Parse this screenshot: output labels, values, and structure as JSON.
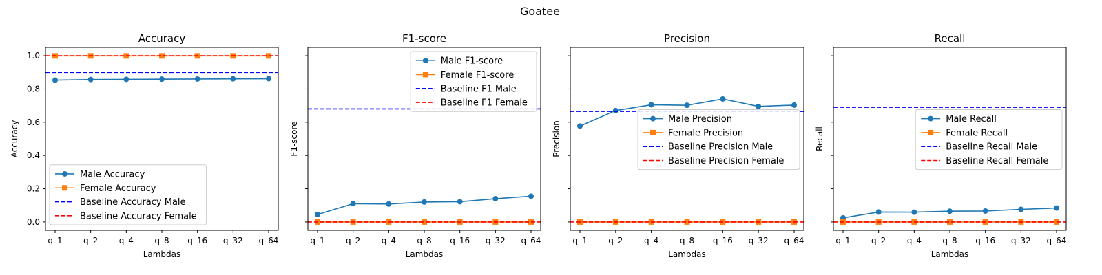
{
  "figure": {
    "title": "Goatee"
  },
  "chart_data": [
    {
      "type": "line",
      "title": "Accuracy",
      "xlabel": "Lambdas",
      "ylabel": "Accuracy",
      "categories": [
        "q_1",
        "q_2",
        "q_4",
        "q_8",
        "q_16",
        "q_32",
        "q_64"
      ],
      "ylim": [
        -0.05,
        1.05
      ],
      "yticks": [
        "0.0",
        "0.2",
        "0.4",
        "0.6",
        "0.8",
        "1.0"
      ],
      "show_ytick_labels": true,
      "series": [
        {
          "name": "Male Accuracy",
          "values": [
            0.853,
            0.857,
            0.858,
            0.859,
            0.86,
            0.861,
            0.862
          ],
          "color": "#1f77b4",
          "marker": "circle"
        },
        {
          "name": "Female Accuracy",
          "values": [
            0.999,
            0.999,
            0.999,
            0.999,
            0.999,
            0.999,
            0.999
          ],
          "color": "#ff7f0e",
          "marker": "square"
        }
      ],
      "baselines": [
        {
          "name": "Baseline Accuracy Male",
          "value": 0.9,
          "color": "#0000ff"
        },
        {
          "name": "Baseline Accuracy Female",
          "value": 1.0,
          "color": "#ff0000"
        }
      ],
      "legend": "lower-left"
    },
    {
      "type": "line",
      "title": "F1-score",
      "xlabel": "Lambdas",
      "ylabel": "F1-score",
      "categories": [
        "q_1",
        "q_2",
        "q_4",
        "q_8",
        "q_16",
        "q_32",
        "q_64"
      ],
      "ylim": [
        -0.05,
        1.05
      ],
      "yticks": [
        "0.0",
        "0.2",
        "0.4",
        "0.6",
        "0.8",
        "1.0"
      ],
      "show_ytick_labels": false,
      "series": [
        {
          "name": "Male F1-score",
          "values": [
            0.045,
            0.11,
            0.108,
            0.12,
            0.122,
            0.14,
            0.155
          ],
          "color": "#1f77b4",
          "marker": "circle"
        },
        {
          "name": "Female F1-score",
          "values": [
            0.0,
            0.0,
            0.0,
            0.0,
            0.0,
            0.0,
            0.0
          ],
          "color": "#ff7f0e",
          "marker": "square"
        }
      ],
      "baselines": [
        {
          "name": "Baseline F1 Male",
          "value": 0.68,
          "color": "#0000ff"
        },
        {
          "name": "Baseline F1 Female",
          "value": 0.0,
          "color": "#ff0000"
        }
      ],
      "legend": "upper-right"
    },
    {
      "type": "line",
      "title": "Precision",
      "xlabel": "Lambdas",
      "ylabel": "Precision",
      "categories": [
        "q_1",
        "q_2",
        "q_4",
        "q_8",
        "q_16",
        "q_32",
        "q_64"
      ],
      "ylim": [
        -0.05,
        1.05
      ],
      "yticks": [
        "0.0",
        "0.2",
        "0.4",
        "0.6",
        "0.8",
        "1.0"
      ],
      "show_ytick_labels": false,
      "series": [
        {
          "name": "Male Precision",
          "values": [
            0.577,
            0.67,
            0.705,
            0.702,
            0.74,
            0.695,
            0.703
          ],
          "color": "#1f77b4",
          "marker": "circle"
        },
        {
          "name": "Female Precision",
          "values": [
            0.0,
            0.0,
            0.0,
            0.0,
            0.0,
            0.0,
            0.0
          ],
          "color": "#ff7f0e",
          "marker": "square"
        }
      ],
      "baselines": [
        {
          "name": "Baseline Precision Male",
          "value": 0.665,
          "color": "#0000ff"
        },
        {
          "name": "Baseline Precision Female",
          "value": 0.0,
          "color": "#ff0000"
        }
      ],
      "legend": "center-right"
    },
    {
      "type": "line",
      "title": "Recall",
      "xlabel": "Lambdas",
      "ylabel": "Recall",
      "categories": [
        "q_1",
        "q_2",
        "q_4",
        "q_8",
        "q_16",
        "q_32",
        "q_64"
      ],
      "ylim": [
        -0.05,
        1.05
      ],
      "yticks": [
        "0.0",
        "0.2",
        "0.4",
        "0.6",
        "0.8",
        "1.0"
      ],
      "show_ytick_labels": false,
      "series": [
        {
          "name": "Male Recall",
          "values": [
            0.025,
            0.06,
            0.059,
            0.065,
            0.066,
            0.076,
            0.084
          ],
          "color": "#1f77b4",
          "marker": "circle"
        },
        {
          "name": "Female Recall",
          "values": [
            0.0,
            0.0,
            0.0,
            0.0,
            0.0,
            0.0,
            0.0
          ],
          "color": "#ff7f0e",
          "marker": "square"
        }
      ],
      "baselines": [
        {
          "name": "Baseline Recall Male",
          "value": 0.69,
          "color": "#0000ff"
        },
        {
          "name": "Baseline Recall Female",
          "value": 0.0,
          "color": "#ff0000"
        }
      ],
      "legend": "center-right"
    }
  ]
}
